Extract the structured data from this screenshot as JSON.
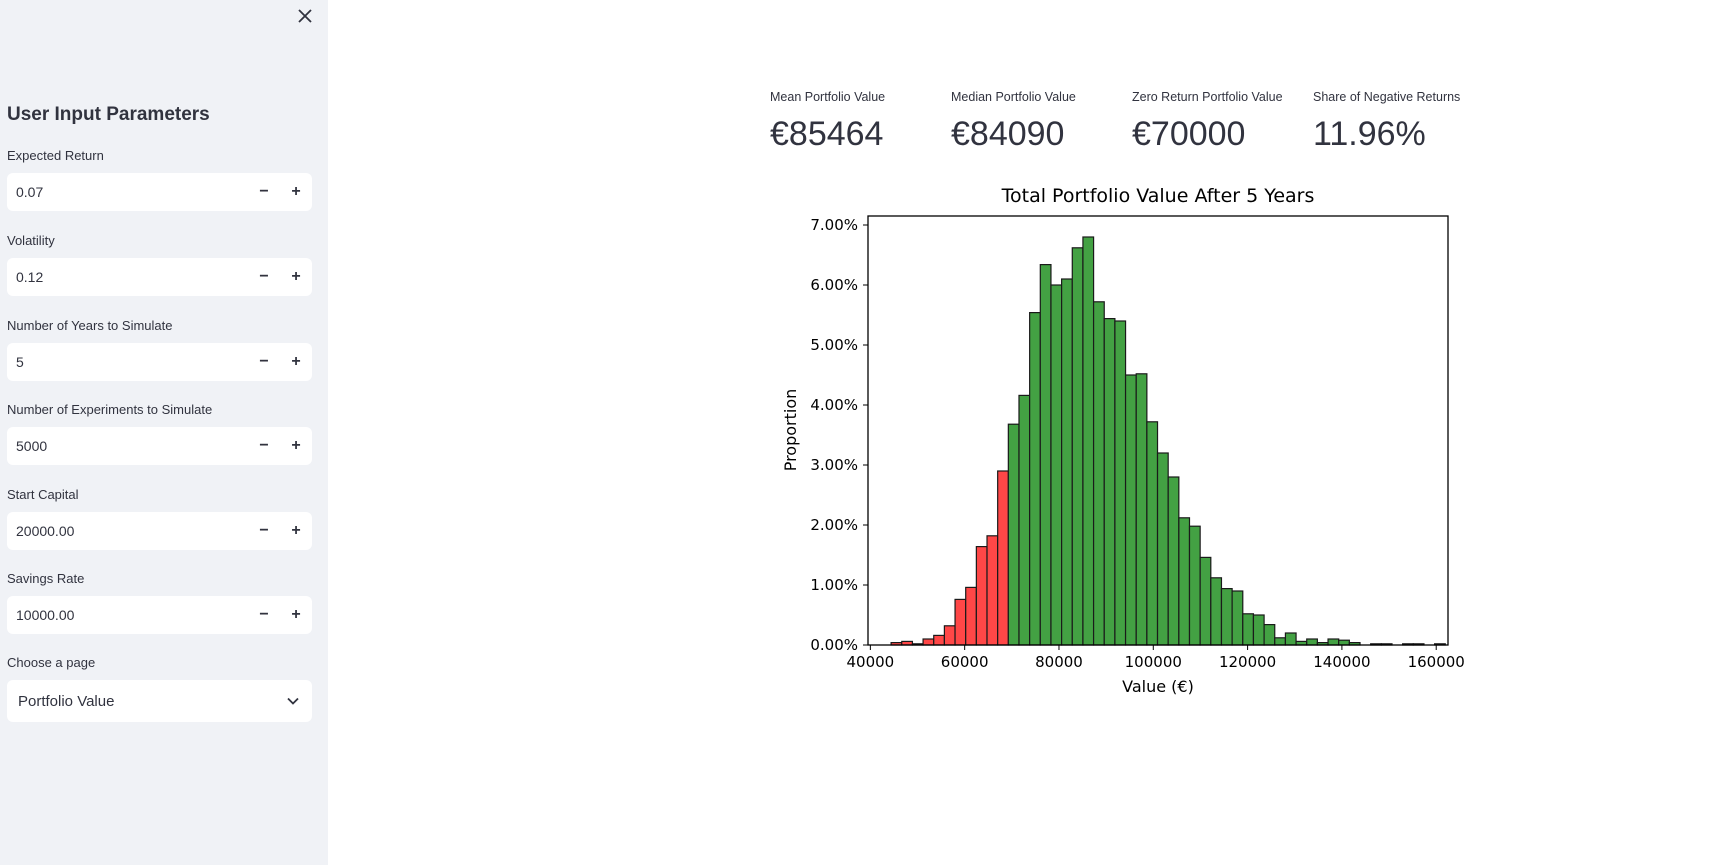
{
  "sidebar": {
    "title": "User Input Parameters",
    "fields": [
      {
        "label": "Expected Return",
        "value": "0.07"
      },
      {
        "label": "Volatility",
        "value": "0.12"
      },
      {
        "label": "Number of Years to Simulate",
        "value": "5"
      },
      {
        "label": "Number of Experiments to Simulate",
        "value": "5000"
      },
      {
        "label": "Start Capital",
        "value": "20000.00"
      },
      {
        "label": "Savings Rate",
        "value": "10000.00"
      }
    ],
    "stepper": {
      "minus": "−",
      "plus": "+"
    },
    "page_select": {
      "label": "Choose a page",
      "value": "Portfolio Value"
    }
  },
  "metrics": [
    {
      "label": "Mean Portfolio Value",
      "value": "€85464"
    },
    {
      "label": "Median Portfolio Value",
      "value": "€84090"
    },
    {
      "label": "Zero Return Portfolio Value",
      "value": "€70000"
    },
    {
      "label": "Share of Negative Returns",
      "value": "11.96%"
    }
  ],
  "chart_data": {
    "type": "bar",
    "title": "Total Portfolio Value After 5 Years",
    "xlabel": "Value (€)",
    "ylabel": "Proportion",
    "xlim": [
      39500,
      162500
    ],
    "ylim": [
      0,
      0.0715
    ],
    "xticks": [
      40000,
      60000,
      80000,
      100000,
      120000,
      140000,
      160000
    ],
    "yticks": [
      0,
      0.01,
      0.02,
      0.03,
      0.04,
      0.05,
      0.06,
      0.07
    ],
    "ytick_labels": [
      "0.00%",
      "1.00%",
      "2.00%",
      "3.00%",
      "4.00%",
      "5.00%",
      "6.00%",
      "7.00%"
    ],
    "threshold": 70000,
    "colors": {
      "below": "#ff4747",
      "above": "#43a143",
      "edge": "#1a1a1a"
    },
    "bin_start": 44400,
    "bin_width": 2260,
    "values": [
      0.0004,
      0.0006,
      0.0002,
      0.001,
      0.0016,
      0.0032,
      0.0076,
      0.0096,
      0.0164,
      0.0182,
      0.029,
      0.0368,
      0.0416,
      0.0554,
      0.0634,
      0.06,
      0.061,
      0.0662,
      0.068,
      0.0572,
      0.0544,
      0.054,
      0.045,
      0.0452,
      0.0372,
      0.032,
      0.028,
      0.0212,
      0.0198,
      0.0146,
      0.0112,
      0.0094,
      0.009,
      0.0052,
      0.005,
      0.0034,
      0.0012,
      0.002,
      0.0006,
      0.001,
      0.0004,
      0.001,
      0.0008,
      0.0004,
      0,
      0.0002,
      0.0002,
      0,
      0.0002,
      0.0002,
      0,
      0.0002,
      0,
      0
    ]
  }
}
